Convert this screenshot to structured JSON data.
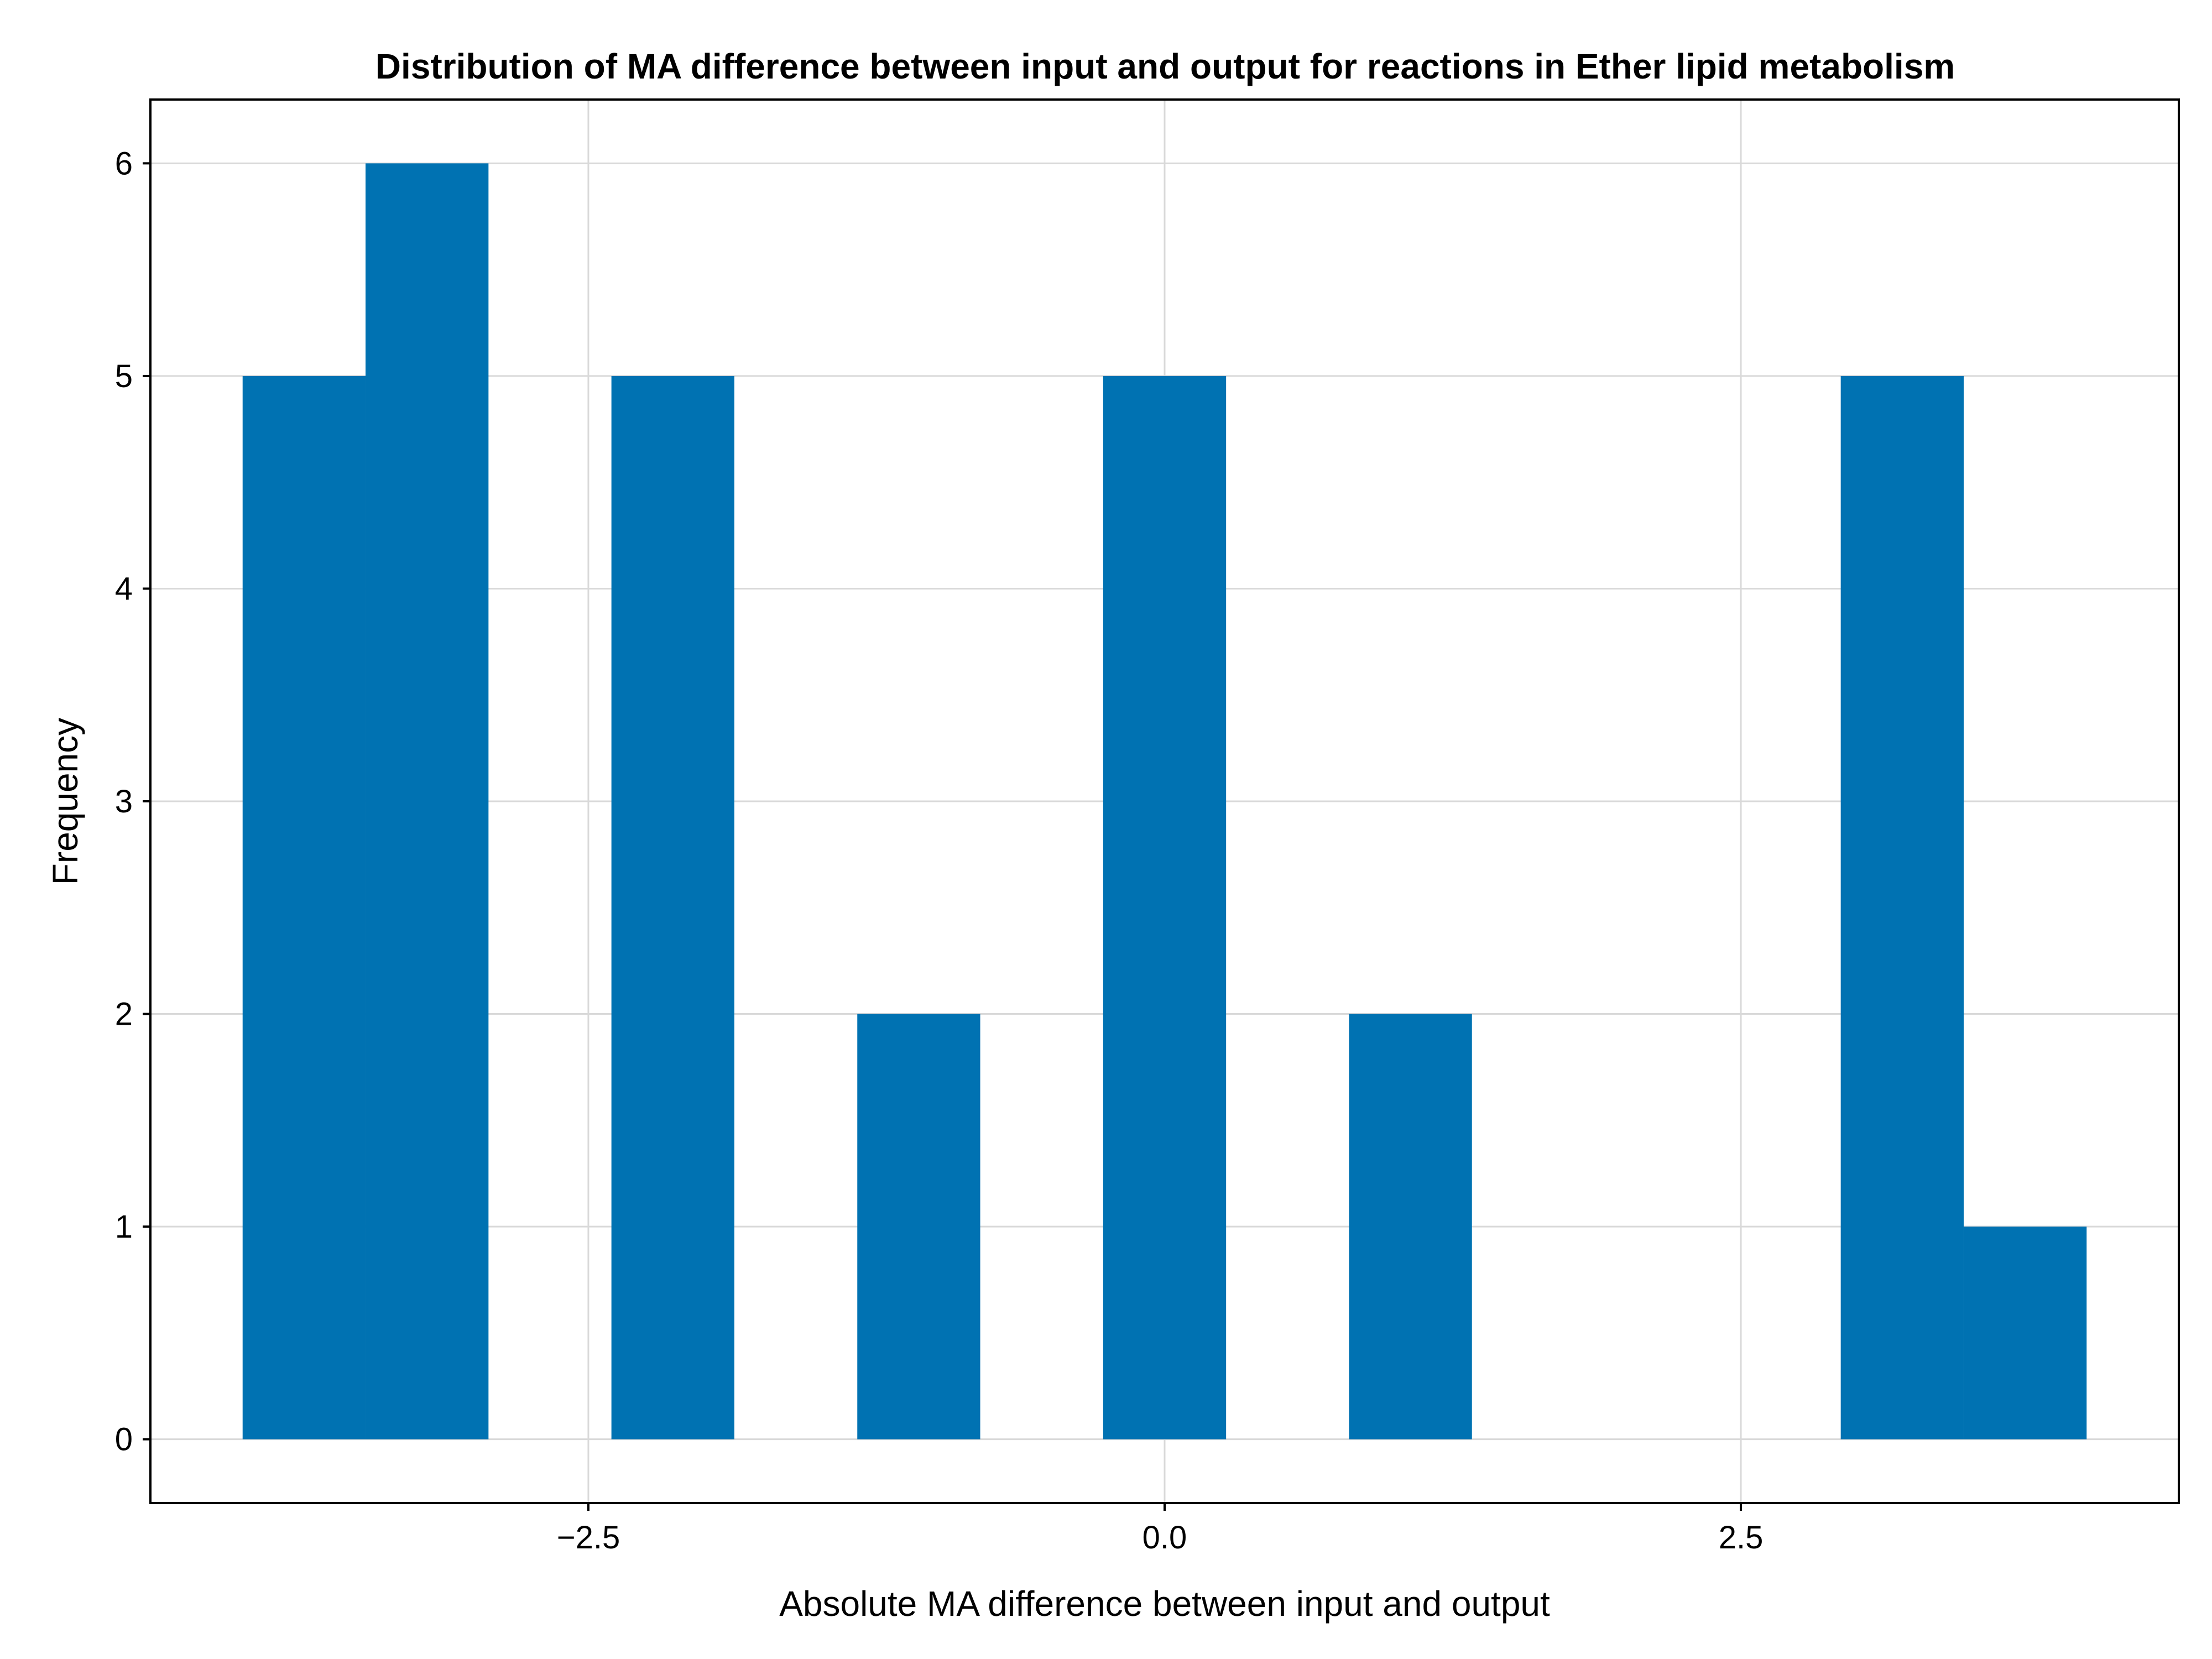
{
  "chart_data": {
    "type": "histogram",
    "title": "Distribution of MA difference between input and output for reactions in Ether lipid metabolism",
    "xlabel": "Absolute MA difference between input and output",
    "ylabel": "Frequency",
    "bins": [
      {
        "start": -4.0,
        "end": -3.4667,
        "count": 5
      },
      {
        "start": -3.4667,
        "end": -2.9333,
        "count": 6
      },
      {
        "start": -2.4,
        "end": -1.8667,
        "count": 5
      },
      {
        "start": -1.3333,
        "end": -0.8,
        "count": 2
      },
      {
        "start": -0.2667,
        "end": 0.2667,
        "count": 5
      },
      {
        "start": 0.8,
        "end": 1.3333,
        "count": 2
      },
      {
        "start": 2.9333,
        "end": 3.4667,
        "count": 5
      },
      {
        "start": 3.4667,
        "end": 4.0,
        "count": 1
      }
    ],
    "xlim": [
      -4.4,
      4.4
    ],
    "ylim": [
      -0.3,
      6.3
    ],
    "xticks": [
      {
        "value": -2.5,
        "label": "−2.5"
      },
      {
        "value": 0,
        "label": "0.0"
      },
      {
        "value": 2.5,
        "label": "2.5"
      }
    ],
    "yticks": [
      {
        "value": 0,
        "label": "0"
      },
      {
        "value": 1,
        "label": "1"
      },
      {
        "value": 2,
        "label": "2"
      },
      {
        "value": 3,
        "label": "3"
      },
      {
        "value": 4,
        "label": "4"
      },
      {
        "value": 5,
        "label": "5"
      },
      {
        "value": 6,
        "label": "6"
      }
    ],
    "grid": true,
    "bar_color": "#0072b2"
  }
}
